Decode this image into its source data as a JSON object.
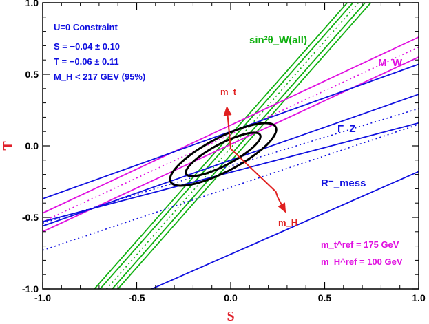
{
  "chart_data": {
    "type": "line",
    "title": "",
    "xlabel": "S",
    "ylabel": "T",
    "xlim": [
      -1.0,
      1.0
    ],
    "ylim": [
      -1.0,
      1.0
    ],
    "xticks": [
      -1.0,
      -0.5,
      0.0,
      0.5,
      1.0
    ],
    "yticks": [
      -1.0,
      -0.5,
      0.0,
      0.5,
      1.0
    ],
    "xtick_labels": [
      "-1.0",
      "-0.5",
      "0.0",
      "0.5",
      "1.0"
    ],
    "ytick_labels": [
      "-1.0",
      "-0.5",
      "0.0",
      "0.5",
      "1.0"
    ],
    "grid": false,
    "colors": {
      "constraint_text": "#1010e0",
      "sin2theta": "#10b010",
      "mw": "#e010e0",
      "blue_bands": "#1010e0",
      "arrows": "#e02020",
      "ellipses": "#000000",
      "ref_text": "#e010e0"
    },
    "annotations": {
      "constraint_title": "U=0 Constraint",
      "s_value": "S = −0.04 ± 0.10",
      "t_value": "T = −0.06 ± 0.11",
      "mh_limit": "M_H < 217 GEV (95%)",
      "sin2": "sin²θ_W(all)",
      "mw": "M_W",
      "gamma_z": "Γ_Z",
      "r_mess": "R⁻_mess",
      "mt_arrow": "m_t",
      "mh_arrow": "m_H",
      "mt_ref": "m_t^ref = 175 GeV",
      "mh_ref": "m_H^ref = 100 GeV"
    },
    "series": [
      {
        "group": "sin2theta",
        "style": "solid",
        "points": [
          [
            -0.725,
            -1.0
          ],
          [
            0.62,
            1.0
          ]
        ]
      },
      {
        "group": "sin2theta",
        "style": "solid",
        "points": [
          [
            -0.695,
            -1.0
          ],
          [
            0.65,
            1.0
          ]
        ]
      },
      {
        "group": "sin2theta",
        "style": "dotted",
        "points": [
          [
            -0.66,
            -1.0
          ],
          [
            0.68,
            1.0
          ]
        ]
      },
      {
        "group": "sin2theta",
        "style": "solid",
        "points": [
          [
            -0.63,
            -1.0
          ],
          [
            0.715,
            1.0
          ]
        ]
      },
      {
        "group": "sin2theta",
        "style": "solid",
        "points": [
          [
            -0.6,
            -1.0
          ],
          [
            0.745,
            1.0
          ]
        ]
      },
      {
        "group": "mw",
        "style": "solid",
        "points": [
          [
            -1.0,
            -0.47
          ],
          [
            1.0,
            0.76
          ]
        ]
      },
      {
        "group": "mw",
        "style": "dotted",
        "points": [
          [
            -1.0,
            -0.53
          ],
          [
            1.0,
            0.69
          ]
        ]
      },
      {
        "group": "mw",
        "style": "solid",
        "points": [
          [
            -1.0,
            -0.6
          ],
          [
            1.0,
            0.62
          ]
        ]
      },
      {
        "group": "blue",
        "style": "solid",
        "points": [
          [
            -1.0,
            -0.37
          ],
          [
            1.0,
            0.57
          ]
        ]
      },
      {
        "group": "blue",
        "style": "solid",
        "points": [
          [
            -1.0,
            -0.56
          ],
          [
            1.0,
            0.36
          ]
        ]
      },
      {
        "group": "blue",
        "style": "dotted",
        "points": [
          [
            -1.0,
            -0.54
          ],
          [
            1.0,
            0.26
          ]
        ]
      },
      {
        "group": "blue",
        "style": "solid",
        "points": [
          [
            -1.0,
            -0.53
          ],
          [
            1.0,
            0.16
          ]
        ]
      },
      {
        "group": "blue",
        "style": "dotted",
        "points": [
          [
            -1.0,
            -0.73
          ],
          [
            1.0,
            0.15
          ]
        ]
      },
      {
        "group": "blue",
        "style": "solid",
        "points": [
          [
            -0.42,
            -1.0
          ],
          [
            1.0,
            -0.18
          ]
        ]
      }
    ],
    "ellipses": [
      {
        "center": [
          -0.04,
          -0.06
        ],
        "semi_major": 0.24,
        "semi_minor": 0.07,
        "angle_deg": 36
      },
      {
        "center": [
          -0.04,
          -0.06
        ],
        "semi_major": 0.34,
        "semi_minor": 0.11,
        "angle_deg": 36
      }
    ],
    "arrows": [
      {
        "label": "mt",
        "points": [
          [
            0.0,
            -0.02
          ],
          [
            -0.02,
            0.27
          ]
        ]
      },
      {
        "label": "mh",
        "points": [
          [
            0.0,
            -0.02
          ],
          [
            0.24,
            -0.32
          ],
          [
            0.25,
            -0.36
          ],
          [
            0.29,
            -0.46
          ]
        ]
      }
    ]
  }
}
